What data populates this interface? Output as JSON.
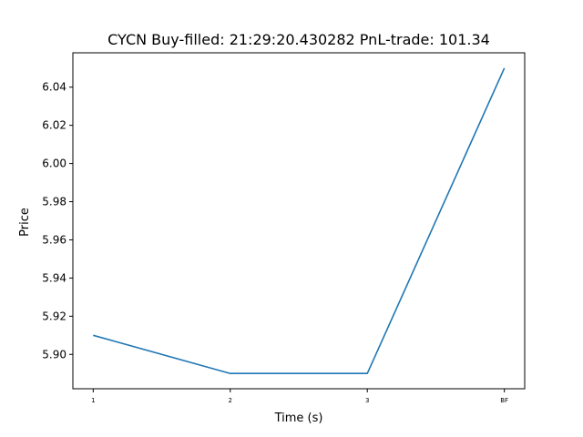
{
  "chart_data": {
    "type": "line",
    "title": "CYCN  Buy-filled:  21:29:20.430282  PnL-trade:  101.34",
    "xlabel": "Time (s)",
    "ylabel": "Price",
    "categories": [
      "1",
      "2",
      "3",
      "BF"
    ],
    "series": [
      {
        "values": [
          5.91,
          5.89,
          5.89,
          6.05
        ],
        "color": "#1f77b4"
      }
    ],
    "yticks": [
      "5.90",
      "5.92",
      "5.94",
      "5.96",
      "5.98",
      "6.00",
      "6.02",
      "6.04"
    ],
    "ylim": [
      5.882,
      6.058
    ],
    "grid": false,
    "legend": "none"
  }
}
